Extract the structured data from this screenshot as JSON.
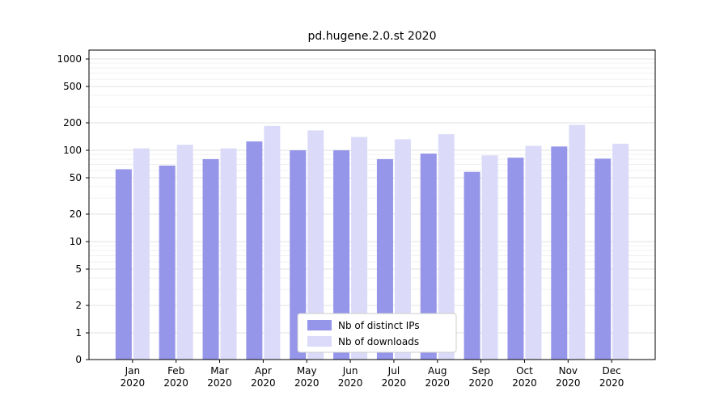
{
  "chart_data": {
    "type": "bar",
    "title": "pd.hugene.2.0.st 2020",
    "categories": [
      "Jan",
      "Feb",
      "Mar",
      "Apr",
      "May",
      "Jun",
      "Jul",
      "Aug",
      "Sep",
      "Oct",
      "Nov",
      "Dec"
    ],
    "category_year": "2020",
    "series": [
      {
        "name": "Nb of distinct IPs",
        "color": "#9595ea",
        "values": [
          62,
          68,
          80,
          125,
          100,
          100,
          80,
          92,
          58,
          83,
          110,
          81
        ]
      },
      {
        "name": "Nb of downloads",
        "color": "#dbdbf9",
        "values": [
          105,
          115,
          105,
          185,
          165,
          140,
          132,
          150,
          88,
          112,
          190,
          118
        ]
      }
    ],
    "yscale": "symlog",
    "yticks": [
      0,
      1,
      2,
      5,
      10,
      20,
      50,
      100,
      200,
      500,
      1000
    ],
    "minor_yticks": [
      3,
      4,
      6,
      7,
      8,
      9,
      30,
      40,
      60,
      70,
      80,
      90,
      300,
      400,
      600,
      700,
      800,
      900
    ],
    "ylim": [
      0,
      1200
    ],
    "grid": true,
    "legend_position": "lower center inside"
  }
}
